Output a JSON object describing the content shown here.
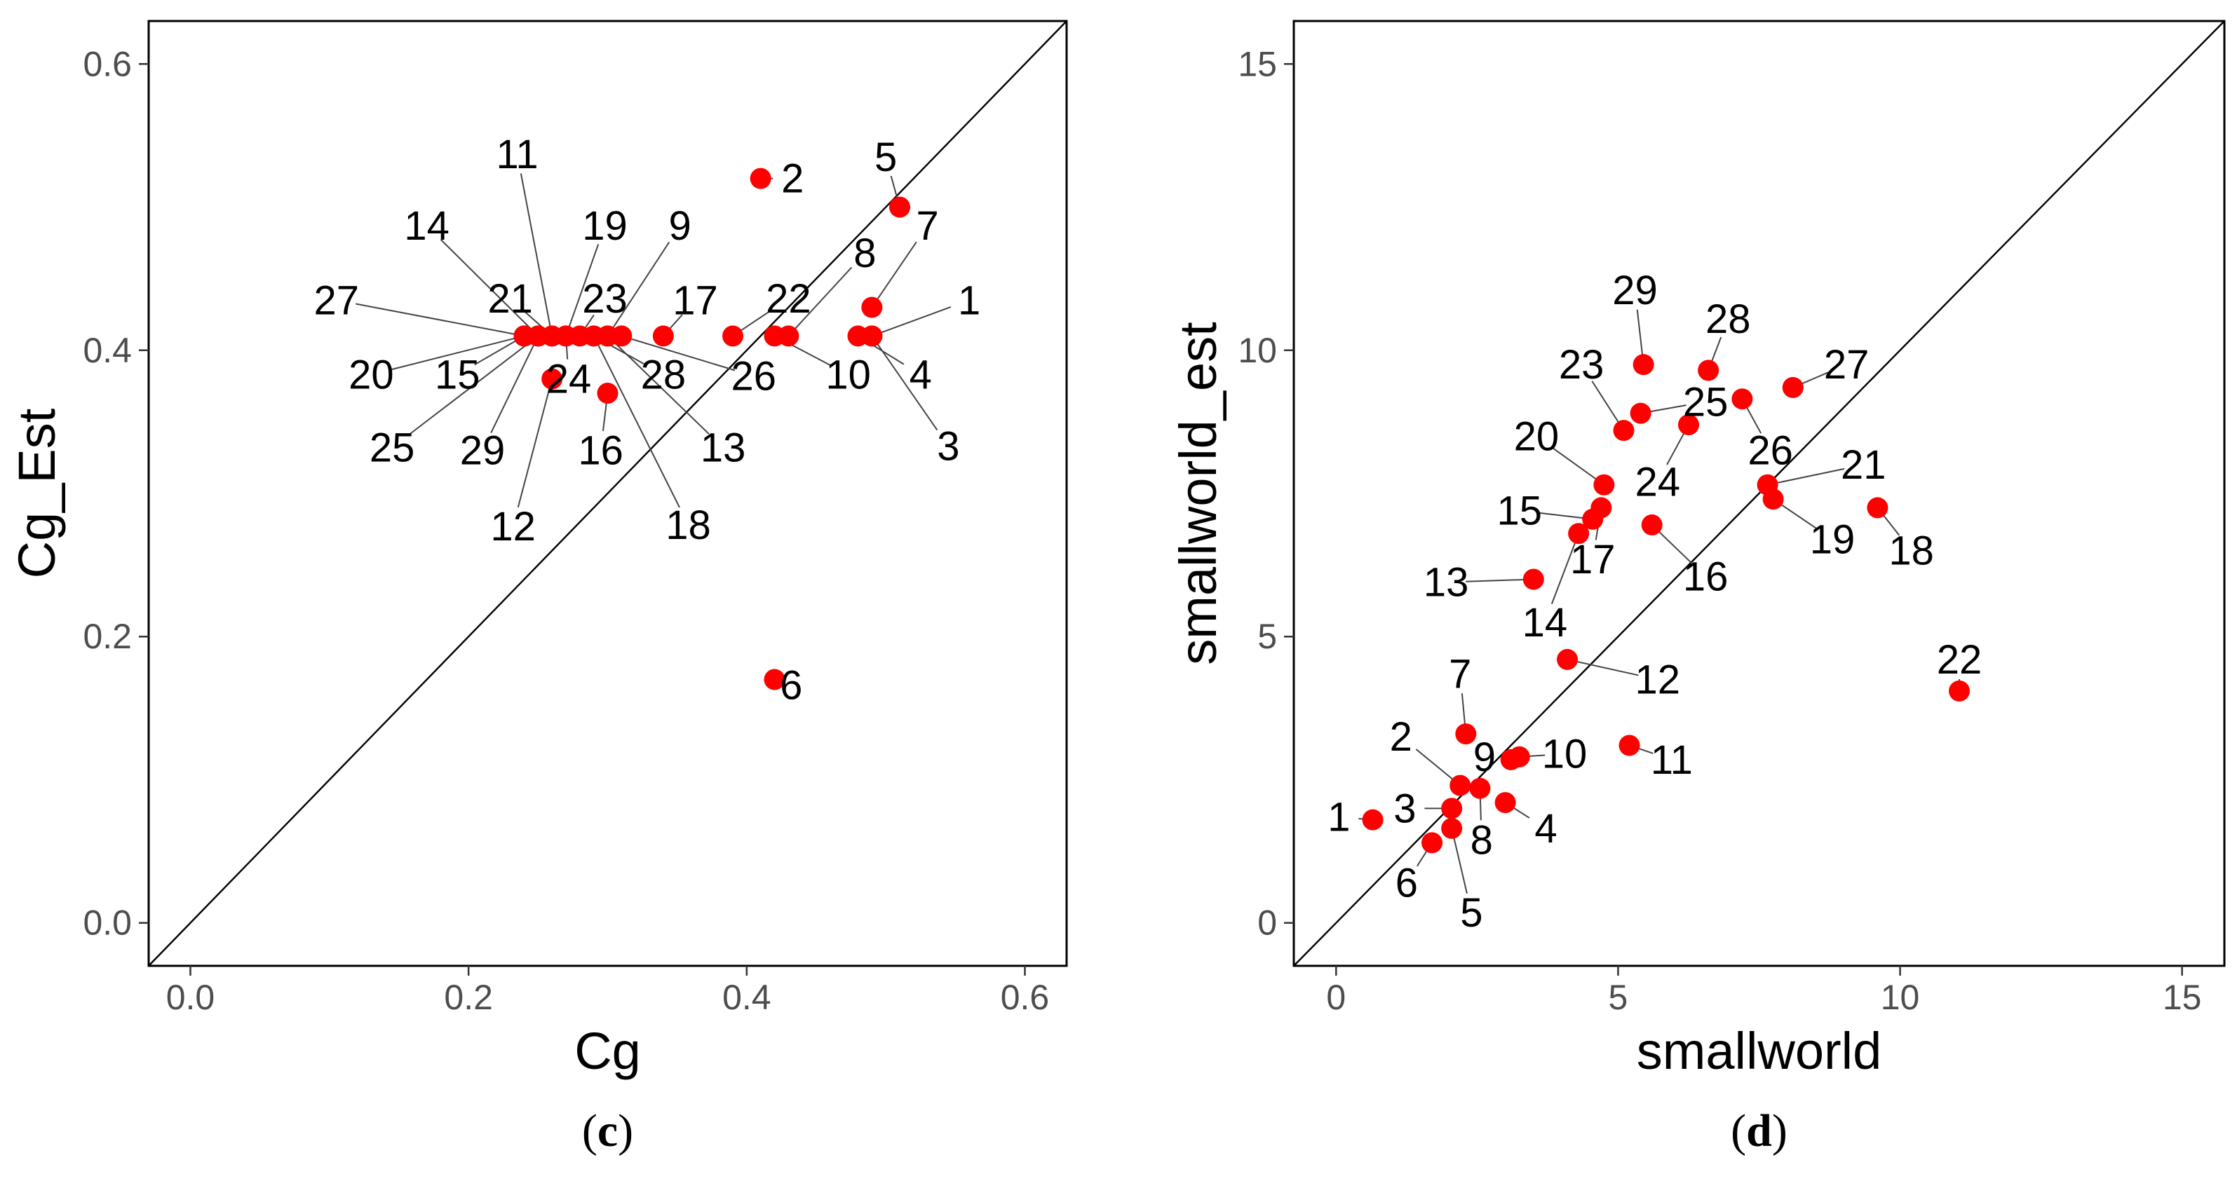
{
  "chart_data": [
    {
      "id": "c",
      "type": "scatter",
      "caption_letter": "c",
      "xlabel": "Cg",
      "ylabel": "Cg_Est",
      "xlim": [
        -0.03,
        0.63
      ],
      "ylim": [
        -0.03,
        0.63
      ],
      "xticks": [
        0.0,
        0.2,
        0.4,
        0.6
      ],
      "yticks": [
        0.0,
        0.2,
        0.4,
        0.6
      ],
      "xtick_labels": [
        "0.0",
        "0.2",
        "0.4",
        "0.6"
      ],
      "ytick_labels": [
        "0.0",
        "0.2",
        "0.4",
        "0.6"
      ],
      "reference_line": "y = x",
      "point_color": "#ff0000",
      "points": [
        {
          "label": "1",
          "x": 0.49,
          "y": 0.41,
          "lx": 0.56,
          "ly": 0.435
        },
        {
          "label": "2",
          "x": 0.41,
          "y": 0.52,
          "lx": 0.433,
          "ly": 0.52
        },
        {
          "label": "3",
          "x": 0.49,
          "y": 0.41,
          "lx": 0.545,
          "ly": 0.333
        },
        {
          "label": "4",
          "x": 0.48,
          "y": 0.41,
          "lx": 0.525,
          "ly": 0.383
        },
        {
          "label": "5",
          "x": 0.51,
          "y": 0.5,
          "lx": 0.5,
          "ly": 0.535
        },
        {
          "label": "6",
          "x": 0.42,
          "y": 0.17,
          "lx": 0.432,
          "ly": 0.166
        },
        {
          "label": "7",
          "x": 0.49,
          "y": 0.43,
          "lx": 0.53,
          "ly": 0.487
        },
        {
          "label": "8",
          "x": 0.43,
          "y": 0.41,
          "lx": 0.485,
          "ly": 0.468
        },
        {
          "label": "9",
          "x": 0.3,
          "y": 0.41,
          "lx": 0.352,
          "ly": 0.487
        },
        {
          "label": "10",
          "x": 0.42,
          "y": 0.41,
          "lx": 0.473,
          "ly": 0.383
        },
        {
          "label": "11",
          "x": 0.26,
          "y": 0.41,
          "lx": 0.235,
          "ly": 0.537
        },
        {
          "label": "12",
          "x": 0.26,
          "y": 0.38,
          "lx": 0.232,
          "ly": 0.277
        },
        {
          "label": "13",
          "x": 0.3,
          "y": 0.41,
          "lx": 0.383,
          "ly": 0.332
        },
        {
          "label": "14",
          "x": 0.25,
          "y": 0.41,
          "lx": 0.17,
          "ly": 0.487
        },
        {
          "label": "15",
          "x": 0.24,
          "y": 0.41,
          "lx": 0.192,
          "ly": 0.383
        },
        {
          "label": "16",
          "x": 0.3,
          "y": 0.37,
          "lx": 0.295,
          "ly": 0.33
        },
        {
          "label": "17",
          "x": 0.34,
          "y": 0.41,
          "lx": 0.363,
          "ly": 0.435
        },
        {
          "label": "18",
          "x": 0.29,
          "y": 0.41,
          "lx": 0.358,
          "ly": 0.278
        },
        {
          "label": "19",
          "x": 0.27,
          "y": 0.41,
          "lx": 0.298,
          "ly": 0.487
        },
        {
          "label": "20",
          "x": 0.24,
          "y": 0.41,
          "lx": 0.13,
          "ly": 0.383
        },
        {
          "label": "21",
          "x": 0.26,
          "y": 0.41,
          "lx": 0.23,
          "ly": 0.436
        },
        {
          "label": "22",
          "x": 0.39,
          "y": 0.41,
          "lx": 0.43,
          "ly": 0.436
        },
        {
          "label": "23",
          "x": 0.28,
          "y": 0.41,
          "lx": 0.298,
          "ly": 0.436
        },
        {
          "label": "24",
          "x": 0.27,
          "y": 0.41,
          "lx": 0.272,
          "ly": 0.38
        },
        {
          "label": "25",
          "x": 0.25,
          "y": 0.41,
          "lx": 0.145,
          "ly": 0.332
        },
        {
          "label": "26",
          "x": 0.31,
          "y": 0.41,
          "lx": 0.405,
          "ly": 0.382
        },
        {
          "label": "27",
          "x": 0.24,
          "y": 0.41,
          "lx": 0.105,
          "ly": 0.435
        },
        {
          "label": "28",
          "x": 0.29,
          "y": 0.41,
          "lx": 0.34,
          "ly": 0.383
        },
        {
          "label": "29",
          "x": 0.25,
          "y": 0.41,
          "lx": 0.21,
          "ly": 0.33
        }
      ]
    },
    {
      "id": "d",
      "type": "scatter",
      "caption_letter": "d",
      "xlabel": "smallworld",
      "ylabel": "smallworld_est",
      "xlim": [
        -0.75,
        15.75
      ],
      "ylim": [
        -0.75,
        15.75
      ],
      "xticks": [
        0,
        5,
        10,
        15
      ],
      "yticks": [
        0,
        5,
        10,
        15
      ],
      "xtick_labels": [
        "0",
        "5",
        "10",
        "15"
      ],
      "ytick_labels": [
        "0",
        "5",
        "10",
        "15"
      ],
      "reference_line": "y = x",
      "point_color": "#ff0000",
      "points": [
        {
          "label": "1",
          "x": 0.65,
          "y": 1.8,
          "lx": 0.05,
          "ly": 1.85
        },
        {
          "label": "2",
          "x": 2.2,
          "y": 2.4,
          "lx": 1.15,
          "ly": 3.25
        },
        {
          "label": "3",
          "x": 2.05,
          "y": 2.0,
          "lx": 1.22,
          "ly": 2.0
        },
        {
          "label": "4",
          "x": 3.0,
          "y": 2.1,
          "lx": 3.72,
          "ly": 1.65
        },
        {
          "label": "5",
          "x": 2.05,
          "y": 1.65,
          "lx": 2.4,
          "ly": 0.18
        },
        {
          "label": "6",
          "x": 1.7,
          "y": 1.4,
          "lx": 1.25,
          "ly": 0.7
        },
        {
          "label": "7",
          "x": 2.3,
          "y": 3.3,
          "lx": 2.2,
          "ly": 4.35
        },
        {
          "label": "8",
          "x": 2.55,
          "y": 2.35,
          "lx": 2.58,
          "ly": 1.45
        },
        {
          "label": "9",
          "x": 3.1,
          "y": 2.85,
          "lx": 2.63,
          "ly": 2.9
        },
        {
          "label": "10",
          "x": 3.25,
          "y": 2.9,
          "lx": 4.05,
          "ly": 2.95
        },
        {
          "label": "11",
          "x": 5.2,
          "y": 3.1,
          "lx": 5.95,
          "ly": 2.85
        },
        {
          "label": "12",
          "x": 4.1,
          "y": 4.6,
          "lx": 5.7,
          "ly": 4.25
        },
        {
          "label": "13",
          "x": 3.5,
          "y": 6.0,
          "lx": 1.95,
          "ly": 5.95
        },
        {
          "label": "14",
          "x": 4.3,
          "y": 6.8,
          "lx": 3.7,
          "ly": 5.25
        },
        {
          "label": "15",
          "x": 4.55,
          "y": 7.05,
          "lx": 3.25,
          "ly": 7.2
        },
        {
          "label": "16",
          "x": 5.6,
          "y": 6.95,
          "lx": 6.55,
          "ly": 6.05
        },
        {
          "label": "17",
          "x": 4.7,
          "y": 7.25,
          "lx": 4.55,
          "ly": 6.35
        },
        {
          "label": "18",
          "x": 9.6,
          "y": 7.25,
          "lx": 10.2,
          "ly": 6.5
        },
        {
          "label": "19",
          "x": 7.75,
          "y": 7.4,
          "lx": 8.8,
          "ly": 6.7
        },
        {
          "label": "20",
          "x": 4.75,
          "y": 7.65,
          "lx": 3.55,
          "ly": 8.5
        },
        {
          "label": "21",
          "x": 7.65,
          "y": 7.65,
          "lx": 9.35,
          "ly": 8.0
        },
        {
          "label": "22",
          "x": 11.05,
          "y": 4.05,
          "lx": 11.05,
          "ly": 4.6
        },
        {
          "label": "23",
          "x": 5.1,
          "y": 8.6,
          "lx": 4.35,
          "ly": 9.75
        },
        {
          "label": "24",
          "x": 6.25,
          "y": 8.7,
          "lx": 5.7,
          "ly": 7.7
        },
        {
          "label": "25",
          "x": 5.4,
          "y": 8.9,
          "lx": 6.55,
          "ly": 9.1
        },
        {
          "label": "26",
          "x": 7.2,
          "y": 9.15,
          "lx": 7.7,
          "ly": 8.25
        },
        {
          "label": "27",
          "x": 8.1,
          "y": 9.35,
          "lx": 9.05,
          "ly": 9.75
        },
        {
          "label": "28",
          "x": 6.6,
          "y": 9.65,
          "lx": 6.95,
          "ly": 10.55
        },
        {
          "label": "29",
          "x": 5.45,
          "y": 9.75,
          "lx": 5.3,
          "ly": 11.05
        }
      ]
    }
  ]
}
